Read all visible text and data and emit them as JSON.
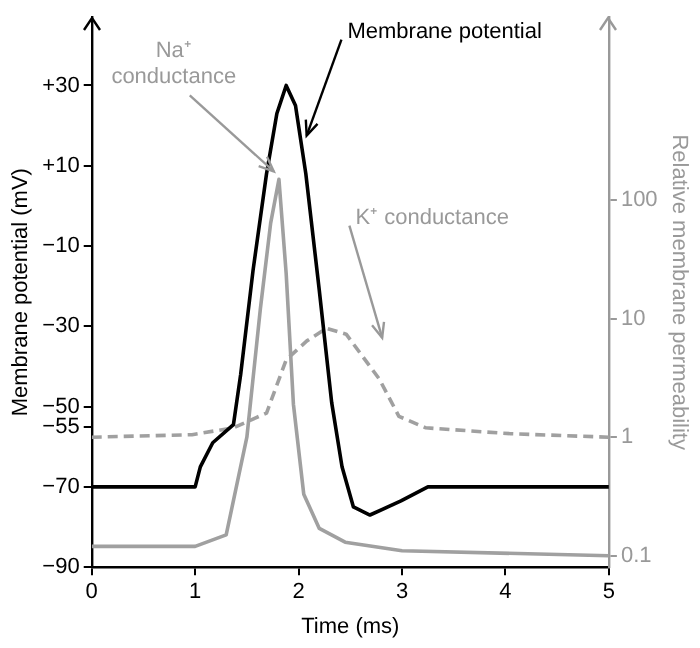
{
  "chart_data": {
    "type": "line",
    "xlabel": "Time (ms)",
    "ylabel": "Membrane potential (mV)",
    "y2label": "Relative membrane permeability",
    "xlim": [
      0,
      5
    ],
    "xticks": [
      0,
      1,
      2,
      3,
      4,
      5
    ],
    "ylim": [
      -90,
      47
    ],
    "yticks": [
      {
        "value": 30,
        "label": "+30"
      },
      {
        "value": 10,
        "label": "+10"
      },
      {
        "value": -10,
        "label": "−10"
      },
      {
        "value": -30,
        "label": "−30"
      },
      {
        "value": -50,
        "label": "−50"
      },
      {
        "value": -55,
        "label": "−55"
      },
      {
        "value": -70,
        "label": "−70"
      },
      {
        "value": -90,
        "label": "−90"
      }
    ],
    "y2lim": [
      0.08,
      3500
    ],
    "y2ticks": [
      0.1,
      1,
      10,
      100
    ],
    "log": "y2",
    "legend": false,
    "series": [
      {
        "color": "#000000",
        "axis": "y",
        "line_style": "solid",
        "x": [
          0,
          1.0,
          1.05,
          1.17,
          1.37,
          1.44,
          1.56,
          1.69,
          1.79,
          1.88,
          1.97,
          2.07,
          2.2,
          2.32,
          2.42,
          2.53,
          2.69,
          2.99,
          3.25,
          5
        ],
        "values": [
          -70,
          -70,
          -65,
          -59,
          -54.5,
          -42,
          -16,
          8,
          23,
          30,
          25,
          8,
          -21,
          -49,
          -65,
          -75,
          -77,
          -73.5,
          -70,
          -70
        ]
      },
      {
        "color": "#a0a0a0",
        "axis": "y2",
        "line_style": "solid",
        "x": [
          0,
          1.0,
          1.3,
          1.5,
          1.63,
          1.73,
          1.81,
          1.88,
          1.95,
          2.05,
          2.2,
          2.45,
          3.0,
          5
        ],
        "values": [
          0.12,
          0.12,
          0.15,
          1,
          12,
          64,
          150,
          24,
          1.9,
          0.33,
          0.17,
          0.13,
          0.11,
          0.1
        ]
      },
      {
        "color": "#a0a0a0",
        "axis": "y2",
        "line_style": "dashed",
        "x": [
          0,
          0.97,
          1.37,
          1.69,
          1.88,
          2.08,
          2.27,
          2.46,
          2.78,
          2.97,
          3.23,
          4.05,
          5
        ],
        "values": [
          1,
          1.05,
          1.2,
          1.6,
          4.5,
          6.5,
          8.3,
          7.4,
          3.1,
          1.5,
          1.2,
          1.07,
          1
        ]
      }
    ],
    "annotations": [
      {
        "text": "Na⁺ conductance",
        "x": 1.76,
        "y": 7.6
      },
      {
        "text": "Membrane potential",
        "x": 2.02,
        "y": 16.5
      },
      "K⁺ conductance"
    ]
  }
}
